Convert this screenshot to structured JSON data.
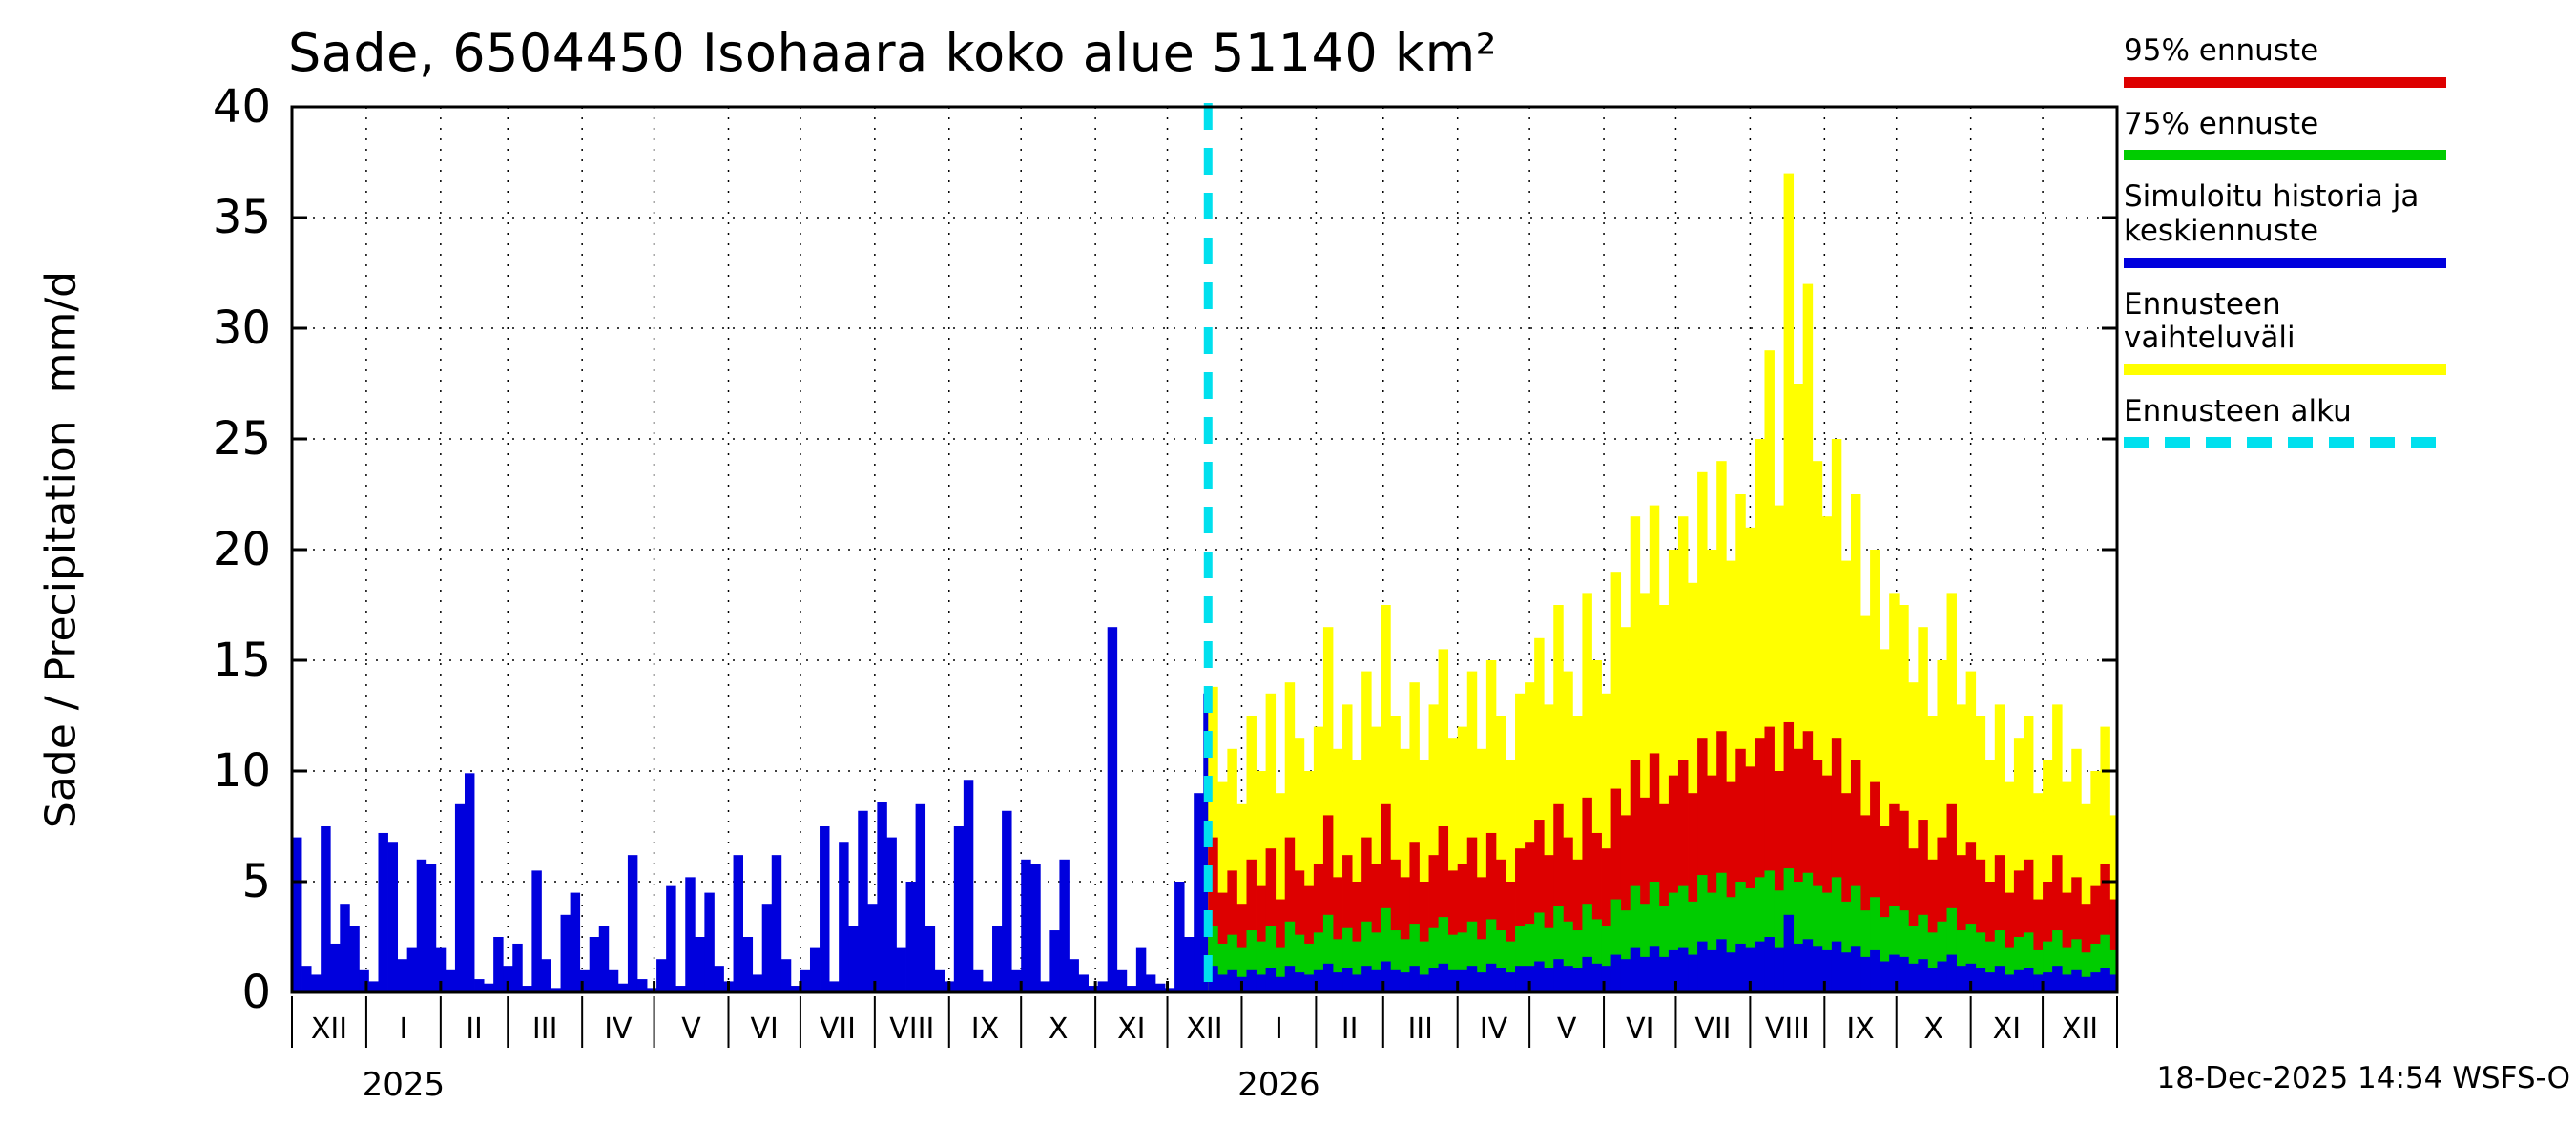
{
  "title": "Sade, 6504450 Isohaara koko alue 51140 km²",
  "y_axis": {
    "label": "Sade / Precipitation  mm/d",
    "ticks": [
      0,
      5,
      10,
      15,
      20,
      25,
      30,
      35,
      40
    ],
    "max": 40
  },
  "x_axis": {
    "month_labels": [
      "XII",
      "I",
      "II",
      "III",
      "IV",
      "V",
      "VI",
      "VII",
      "VIII",
      "IX",
      "X",
      "XI",
      "XII",
      "I",
      "II",
      "III",
      "IV",
      "V",
      "VI",
      "VII",
      "VIII",
      "IX",
      "X",
      "XI",
      "XII"
    ],
    "month_days": [
      31,
      31,
      28,
      31,
      30,
      31,
      30,
      31,
      31,
      30,
      31,
      30,
      31,
      31,
      28,
      31,
      30,
      31,
      30,
      31,
      31,
      30,
      31,
      30,
      31
    ],
    "year_labels": [
      {
        "text": "2025",
        "month_index": 1
      },
      {
        "text": "2026",
        "month_index": 13
      }
    ]
  },
  "legend": [
    {
      "label": "95% ennuste",
      "color": "#dd0000",
      "dashed": false
    },
    {
      "label": "75% ennuste",
      "color": "#00cc00",
      "dashed": false
    },
    {
      "label": "Simuloitu historia ja keskiennuste",
      "color": "#0000dd",
      "dashed": false
    },
    {
      "label": "Ennusteen vaihteluväli",
      "color": "#ffff00",
      "dashed": false
    },
    {
      "label": "Ennusteen alku",
      "color": "#00e0ee",
      "dashed": true
    }
  ],
  "timestamp": "18-Dec-2025 14:54 WSFS-O",
  "colors": {
    "history": "#0000dd",
    "p95": "#dd0000",
    "p75": "#00cc00",
    "median": "#0000dd",
    "range": "#ffff00",
    "forecast_start": "#00e0ee",
    "grid": "#000000"
  },
  "chart_data": {
    "type": "bar",
    "title": "Sade, 6504450 Isohaara koko alue 51140 km²",
    "ylabel": "Sade / Precipitation mm/d",
    "unit": "mm/d",
    "ylim": [
      0,
      40
    ],
    "grid": true,
    "legend_position": "top-right",
    "x_start": "Dec-2024",
    "x_end": "Dec-2026",
    "x_total_days": 761,
    "step_days": 4,
    "forecast_start_day": 382,
    "forecast_start_label": "18-Dec-2025",
    "history": {
      "name": "Simuloitu historia",
      "color": "#0000dd",
      "start_day": 0,
      "values": [
        7.0,
        1.2,
        0.8,
        7.5,
        2.2,
        4.0,
        3.0,
        1.0,
        0.5,
        7.2,
        6.8,
        1.5,
        2.0,
        6.0,
        5.8,
        2.0,
        1.0,
        8.5,
        9.9,
        0.6,
        0.4,
        2.5,
        1.2,
        2.2,
        0.3,
        5.5,
        1.5,
        0.2,
        3.5,
        4.5,
        1.0,
        2.5,
        3.0,
        1.0,
        0.4,
        6.2,
        0.6,
        0.2,
        1.5,
        4.8,
        0.3,
        5.2,
        2.5,
        4.5,
        1.2,
        0.5,
        6.2,
        2.5,
        0.8,
        4.0,
        6.2,
        1.5,
        0.3,
        1.0,
        2.0,
        7.5,
        0.5,
        6.8,
        3.0,
        8.2,
        4.0,
        8.6,
        7.0,
        2.0,
        5.0,
        8.5,
        3.0,
        1.0,
        0.5,
        7.5,
        9.6,
        1.0,
        0.5,
        3.0,
        8.2,
        1.0,
        6.0,
        5.8,
        0.5,
        2.8,
        6.0,
        1.5,
        0.8,
        0.3,
        0.5,
        16.5,
        1.0,
        0.3,
        2.0,
        0.8,
        0.4,
        0.2,
        5.0,
        2.5,
        9.0,
        13.5
      ]
    },
    "forecast": {
      "start_day": 382,
      "series": [
        {
          "name": "Ennusteen vaihteluväli (max)",
          "color": "#ffff00",
          "values": [
            13.8,
            9.5,
            11.0,
            8.5,
            12.5,
            10.0,
            13.5,
            9.0,
            14.0,
            11.5,
            10.0,
            12.0,
            16.5,
            11.0,
            13.0,
            10.5,
            14.5,
            12.0,
            17.5,
            12.5,
            11.0,
            14.0,
            10.5,
            13.0,
            15.5,
            11.5,
            12.0,
            14.5,
            11.0,
            15.0,
            12.5,
            10.5,
            13.5,
            14.0,
            16.0,
            13.0,
            17.5,
            14.5,
            12.5,
            18.0,
            15.0,
            13.5,
            19.0,
            16.5,
            21.5,
            18.0,
            22.0,
            17.5,
            20.0,
            21.5,
            18.5,
            23.5,
            20.0,
            24.0,
            19.5,
            22.5,
            21.0,
            25.0,
            29.0,
            22.0,
            37.0,
            27.5,
            32.0,
            24.0,
            21.5,
            25.0,
            19.5,
            22.5,
            17.0,
            20.0,
            15.5,
            18.0,
            17.5,
            14.0,
            16.5,
            12.5,
            15.0,
            18.0,
            13.0,
            14.5,
            12.5,
            10.5,
            13.0,
            9.5,
            11.5,
            12.5,
            9.0,
            10.5,
            13.0,
            9.5,
            11.0,
            8.5,
            10.0,
            12.0,
            8.0
          ]
        },
        {
          "name": "95% ennuste",
          "color": "#dd0000",
          "values": [
            7.0,
            4.5,
            5.5,
            4.0,
            6.0,
            4.8,
            6.5,
            4.2,
            7.0,
            5.5,
            4.8,
            5.8,
            8.0,
            5.2,
            6.2,
            5.0,
            7.0,
            5.8,
            8.5,
            6.0,
            5.2,
            6.8,
            5.0,
            6.2,
            7.5,
            5.5,
            5.8,
            7.0,
            5.2,
            7.2,
            6.0,
            5.0,
            6.5,
            6.8,
            7.8,
            6.2,
            8.5,
            7.0,
            6.0,
            8.8,
            7.2,
            6.5,
            9.2,
            8.0,
            10.5,
            8.8,
            10.8,
            8.5,
            9.8,
            10.5,
            9.0,
            11.5,
            9.8,
            11.8,
            9.5,
            11.0,
            10.2,
            11.5,
            12.0,
            10.0,
            12.2,
            11.0,
            11.8,
            10.5,
            9.8,
            11.5,
            9.0,
            10.5,
            8.0,
            9.5,
            7.5,
            8.5,
            8.2,
            6.5,
            7.8,
            6.0,
            7.0,
            8.5,
            6.2,
            6.8,
            6.0,
            5.0,
            6.2,
            4.5,
            5.5,
            6.0,
            4.2,
            5.0,
            6.2,
            4.5,
            5.2,
            4.0,
            4.8,
            5.8,
            4.2
          ]
        },
        {
          "name": "75% ennuste",
          "color": "#00cc00",
          "values": [
            3.0,
            2.2,
            2.6,
            2.0,
            2.8,
            2.3,
            3.0,
            2.0,
            3.2,
            2.6,
            2.2,
            2.7,
            3.5,
            2.4,
            2.9,
            2.3,
            3.2,
            2.7,
            3.8,
            2.8,
            2.4,
            3.1,
            2.3,
            2.9,
            3.4,
            2.6,
            2.7,
            3.2,
            2.4,
            3.3,
            2.8,
            2.3,
            3.0,
            3.1,
            3.6,
            2.9,
            3.9,
            3.2,
            2.8,
            4.0,
            3.3,
            3.0,
            4.2,
            3.7,
            4.8,
            4.0,
            5.0,
            3.9,
            4.5,
            4.8,
            4.1,
            5.3,
            4.5,
            5.4,
            4.3,
            5.0,
            4.7,
            5.2,
            5.5,
            4.6,
            5.6,
            5.0,
            5.4,
            4.8,
            4.5,
            5.2,
            4.1,
            4.8,
            3.7,
            4.3,
            3.4,
            3.9,
            3.7,
            3.0,
            3.5,
            2.7,
            3.2,
            3.8,
            2.8,
            3.1,
            2.7,
            2.3,
            2.8,
            2.0,
            2.5,
            2.7,
            1.9,
            2.3,
            2.8,
            2.0,
            2.4,
            1.8,
            2.2,
            2.6,
            1.9
          ]
        },
        {
          "name": "Keskiennuste",
          "color": "#0000dd",
          "values": [
            1.2,
            0.8,
            1.0,
            0.7,
            1.0,
            0.8,
            1.1,
            0.7,
            1.2,
            0.9,
            0.8,
            1.0,
            1.3,
            0.9,
            1.1,
            0.8,
            1.2,
            1.0,
            1.4,
            1.0,
            0.9,
            1.2,
            0.8,
            1.1,
            1.3,
            1.0,
            1.0,
            1.2,
            0.9,
            1.3,
            1.1,
            0.9,
            1.2,
            1.2,
            1.4,
            1.1,
            1.5,
            1.2,
            1.1,
            1.6,
            1.3,
            1.2,
            1.7,
            1.5,
            2.0,
            1.6,
            2.1,
            1.6,
            1.9,
            2.0,
            1.7,
            2.3,
            1.9,
            2.4,
            1.8,
            2.2,
            2.0,
            2.3,
            2.5,
            2.0,
            3.5,
            2.2,
            2.4,
            2.1,
            1.9,
            2.3,
            1.8,
            2.1,
            1.6,
            1.9,
            1.4,
            1.7,
            1.6,
            1.3,
            1.5,
            1.1,
            1.4,
            1.7,
            1.2,
            1.3,
            1.1,
            0.9,
            1.2,
            0.8,
            1.0,
            1.1,
            0.8,
            0.9,
            1.2,
            0.8,
            1.0,
            0.7,
            0.9,
            1.1,
            0.8
          ]
        }
      ]
    }
  }
}
